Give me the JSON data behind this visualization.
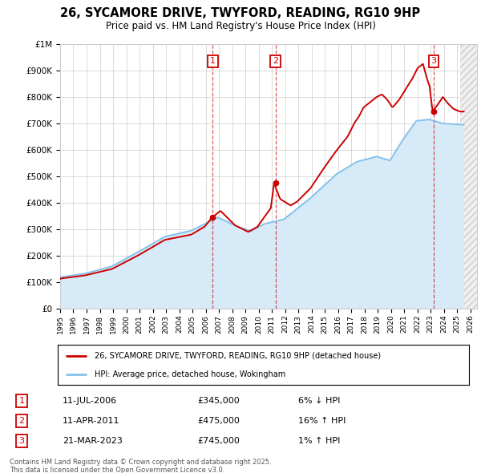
{
  "title": "26, SYCAMORE DRIVE, TWYFORD, READING, RG10 9HP",
  "subtitle": "Price paid vs. HM Land Registry's House Price Index (HPI)",
  "ylabel_ticks": [
    "£0",
    "£100K",
    "£200K",
    "£300K",
    "£400K",
    "£500K",
    "£600K",
    "£700K",
    "£800K",
    "£900K",
    "£1M"
  ],
  "ytick_values": [
    0,
    100000,
    200000,
    300000,
    400000,
    500000,
    600000,
    700000,
    800000,
    900000,
    1000000
  ],
  "ylim": [
    0,
    1000000
  ],
  "purchase_dates": [
    "2006-07-11",
    "2011-04-11",
    "2023-03-21"
  ],
  "purchase_prices": [
    345000,
    475000,
    745000
  ],
  "purchase_labels": [
    "1",
    "2",
    "3"
  ],
  "legend_line1": "26, SYCAMORE DRIVE, TWYFORD, READING, RG10 9HP (detached house)",
  "legend_line2": "HPI: Average price, detached house, Wokingham",
  "table_rows": [
    {
      "num": "1",
      "date": "11-JUL-2006",
      "price": "£345,000",
      "hpi": "6% ↓ HPI"
    },
    {
      "num": "2",
      "date": "11-APR-2011",
      "price": "£475,000",
      "hpi": "16% ↑ HPI"
    },
    {
      "num": "3",
      "date": "21-MAR-2023",
      "price": "£745,000",
      "hpi": "1% ↑ HPI"
    }
  ],
  "footer": "Contains HM Land Registry data © Crown copyright and database right 2025.\nThis data is licensed under the Open Government Licence v3.0.",
  "red_color": "#cc0000",
  "blue_color": "#85c1e9",
  "hpi_fill_color": "#d6eaf8",
  "vline_color": "#cc0000",
  "grid_color": "#cccccc",
  "background_color": "#ffffff",
  "box_color": "#cc0000",
  "hatch_fill_color": "#e8e8e8",
  "hpi_anchors": {
    "1995.0": 118000,
    "1997.0": 133000,
    "1999.0": 160000,
    "2001.0": 215000,
    "2003.0": 272000,
    "2005.0": 295000,
    "2007.0": 345000,
    "2008.5": 310000,
    "2009.5": 293000,
    "2010.5": 320000,
    "2012.0": 338000,
    "2014.0": 418000,
    "2016.0": 510000,
    "2017.5": 555000,
    "2019.0": 575000,
    "2020.0": 560000,
    "2021.0": 640000,
    "2022.0": 710000,
    "2023.0": 715000,
    "2024.0": 700000,
    "2025.5": 695000
  },
  "red_anchors": {
    "1995.0": 113000,
    "1997.0": 126000,
    "1999.0": 150000,
    "2001.0": 202000,
    "2003.0": 260000,
    "2005.0": 280000,
    "2006.0": 310000,
    "2006.58": 345000,
    "2007.2": 370000,
    "2008.3": 315000,
    "2009.3": 290000,
    "2010.0": 310000,
    "2011.0": 380000,
    "2011.25": 475000,
    "2011.7": 415000,
    "2012.5": 390000,
    "2013.0": 405000,
    "2014.0": 455000,
    "2015.0": 530000,
    "2016.0": 600000,
    "2016.8": 650000,
    "2017.3": 700000,
    "2017.7": 730000,
    "2018.0": 760000,
    "2018.5": 780000,
    "2019.0": 800000,
    "2019.4": 810000,
    "2019.8": 790000,
    "2020.2": 760000,
    "2020.7": 790000,
    "2021.2": 830000,
    "2021.7": 870000,
    "2022.1": 910000,
    "2022.5": 925000,
    "2022.8": 870000,
    "2023.0": 840000,
    "2023.22": 745000,
    "2023.6": 770000,
    "2024.0": 800000,
    "2024.4": 775000,
    "2024.8": 755000,
    "2025.3": 745000
  }
}
